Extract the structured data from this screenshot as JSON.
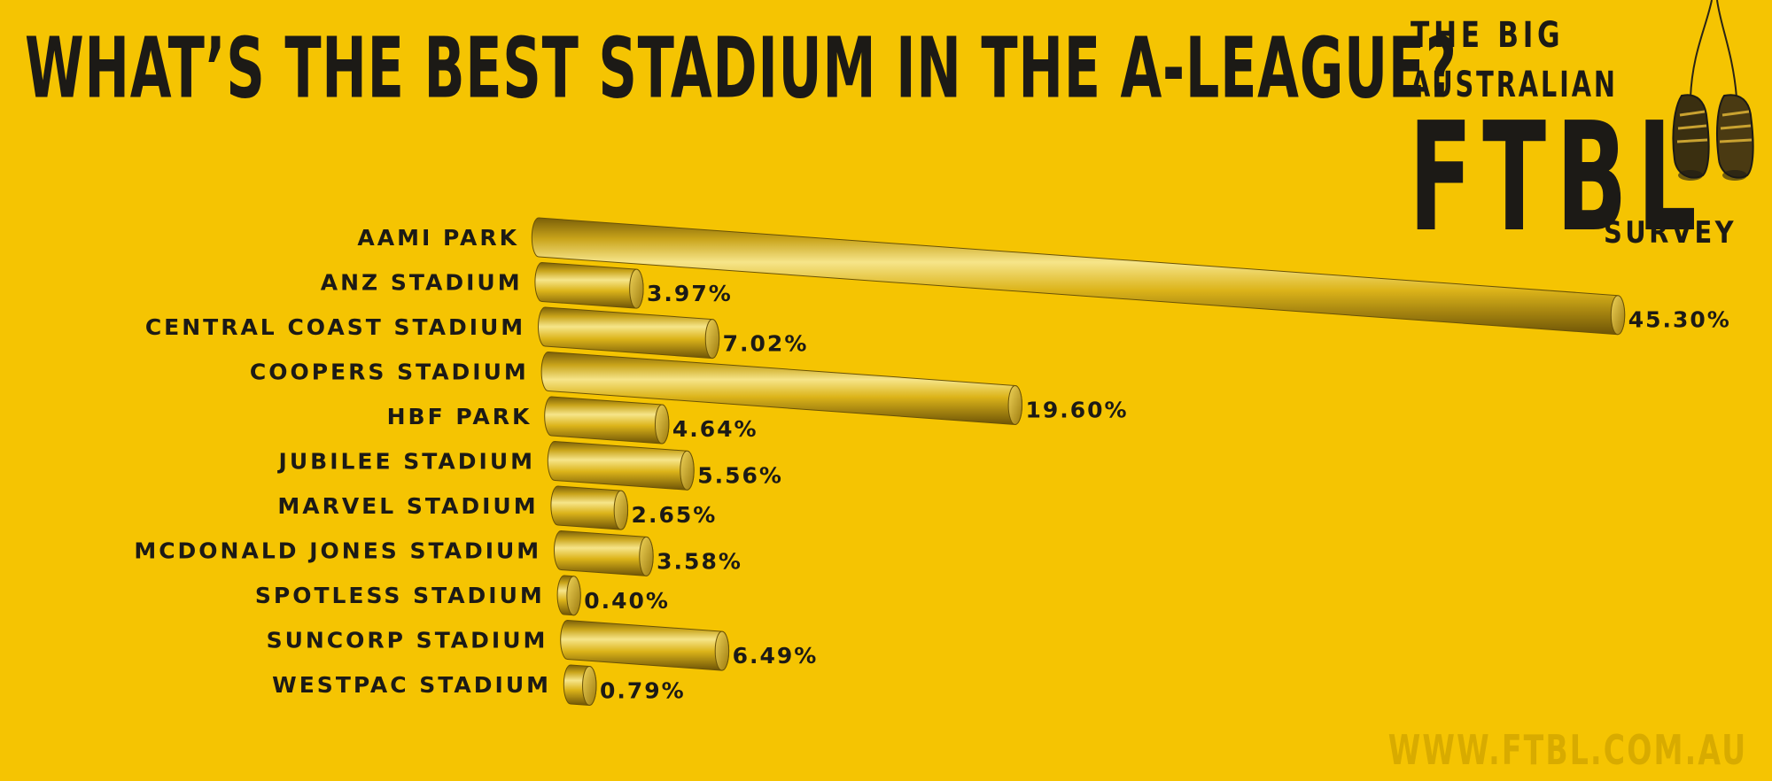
{
  "title": "WHAT’S THE BEST STADIUM IN THE A-LEAGUE?",
  "logo": {
    "line1": "THE BIG",
    "line2": "AUSTRALIAN",
    "main": "FTBL",
    "suffix": "SURVEY",
    "icon": "hanging-football-boots-icon"
  },
  "watermark": "WWW.FTBL.COM.AU",
  "colors": {
    "background": "#f5c402",
    "bar_light": "#f4e27a",
    "bar_mid": "#dcb41a",
    "bar_dark": "#7a5f08",
    "text": "#1c1a16"
  },
  "chart_data": {
    "type": "bar",
    "orientation": "horizontal",
    "style": "3d-cylinder",
    "categories": [
      "AAMI PARK",
      "ANZ STADIUM",
      "CENTRAL COAST STADIUM",
      "COOPERS STADIUM",
      "HBF PARK",
      "JUBILEE STADIUM",
      "MARVEL STADIUM",
      "MCDONALD JONES STADIUM",
      "SPOTLESS STADIUM",
      "SUNCORP STADIUM",
      "WESTPAC STADIUM"
    ],
    "values": [
      45.3,
      3.97,
      7.02,
      19.6,
      4.64,
      5.56,
      2.65,
      3.58,
      0.4,
      6.49,
      0.79
    ],
    "value_labels": [
      "45.30%",
      "3.97%",
      "7.02%",
      "19.60%",
      "4.64%",
      "5.56%",
      "2.65%",
      "3.58%",
      "0.40%",
      "6.49%",
      "0.79%"
    ],
    "unit": "%",
    "title": "WHAT’S THE BEST STADIUM IN THE A-LEAGUE?",
    "xlabel": "",
    "ylabel": "",
    "grid": false,
    "legend": "none"
  }
}
